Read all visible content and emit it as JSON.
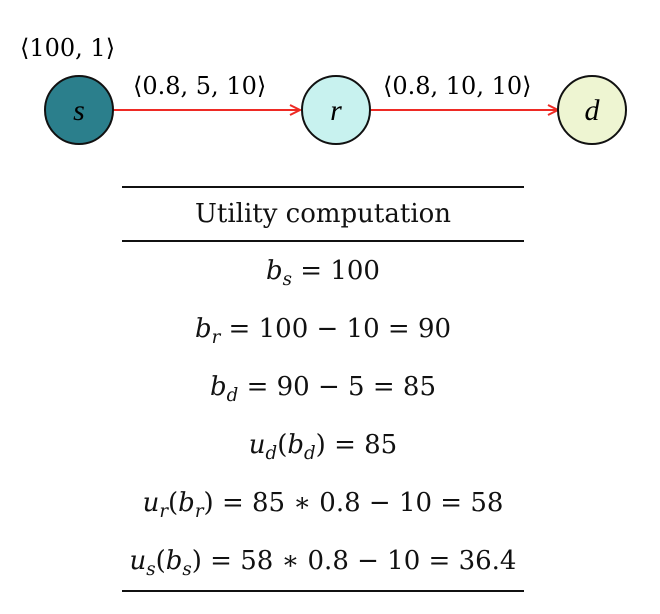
{
  "diagram": {
    "source_label": "⟨100, 1⟩",
    "nodes": [
      {
        "id": "s",
        "label": "s",
        "fill": "#2b7f8c"
      },
      {
        "id": "r",
        "label": "r",
        "fill": "#c8f2ef"
      },
      {
        "id": "d",
        "label": "d",
        "fill": "#eef5d2"
      }
    ],
    "edges": [
      {
        "from": "s",
        "to": "r",
        "label": "⟨0.8, 5, 10⟩",
        "color": "#ee2a24"
      },
      {
        "from": "r",
        "to": "d",
        "label": "⟨0.8, 10, 10⟩",
        "color": "#ee2a24"
      }
    ],
    "node_stroke": "#111111"
  },
  "table": {
    "header": "Utility computation",
    "rows": [
      "b_s = 100",
      "b_r = 100 − 10 = 90",
      "b_d = 90 − 5 = 85",
      "u_d(b_d) = 85",
      "u_r(b_r) = 85 ∗ 0.8 − 10 = 58",
      "u_s(b_s) = 58 ∗ 0.8 − 10 = 36.4"
    ]
  }
}
